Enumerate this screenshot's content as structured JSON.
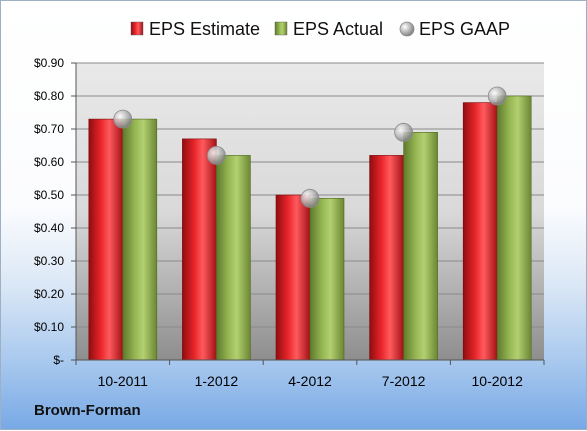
{
  "company": "Brown-Forman",
  "chart_data": {
    "type": "bar",
    "categories": [
      "10-2011",
      "1-2012",
      "4-2012",
      "7-2012",
      "10-2012"
    ],
    "series": [
      {
        "name": "EPS Estimate",
        "kind": "bar",
        "color": "#d0181c",
        "values": [
          0.73,
          0.67,
          0.5,
          0.62,
          0.78
        ]
      },
      {
        "name": "EPS Actual",
        "kind": "bar",
        "color": "#8aab4a",
        "values": [
          0.73,
          0.62,
          0.49,
          0.69,
          0.8
        ]
      },
      {
        "name": "EPS GAAP",
        "kind": "marker",
        "color": "#a8a8a8",
        "values": [
          0.73,
          0.62,
          0.49,
          0.69,
          0.8
        ]
      }
    ],
    "yticks": [
      "$-",
      "$0.10",
      "$0.20",
      "$0.30",
      "$0.40",
      "$0.50",
      "$0.60",
      "$0.70",
      "$0.80",
      "$0.90"
    ],
    "ylim": [
      0,
      0.9
    ],
    "grid": true,
    "legend_position": "top"
  }
}
